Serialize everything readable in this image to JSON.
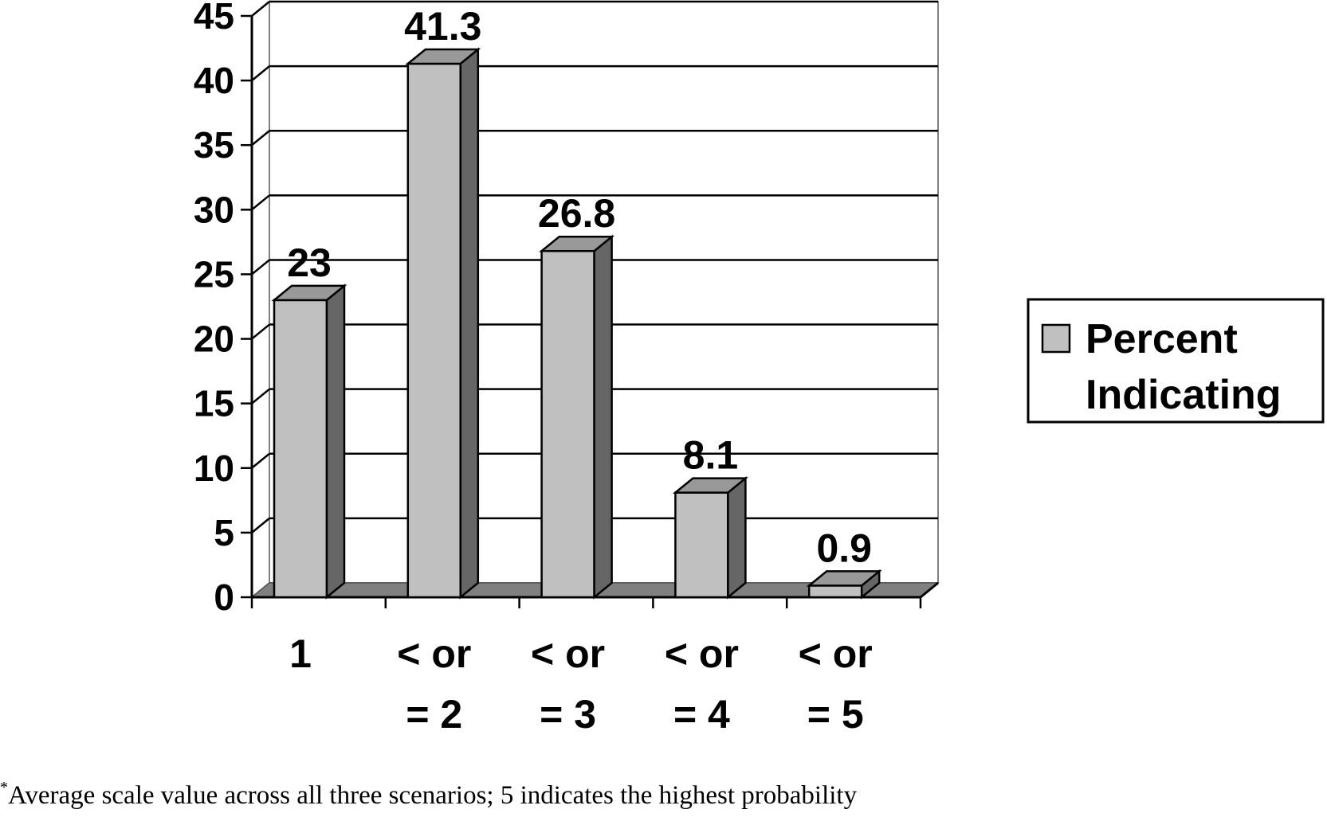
{
  "chart_data": {
    "type": "bar",
    "style": "3d-column",
    "categories": [
      [
        "1"
      ],
      [
        "< or",
        "= 2"
      ],
      [
        "< or",
        "= 3"
      ],
      [
        "< or",
        "= 4"
      ],
      [
        "< or",
        "= 5"
      ]
    ],
    "series": [
      {
        "name": "Percent Indicating",
        "values": [
          23,
          41.3,
          26.8,
          8.1,
          0.9
        ],
        "data_labels": [
          "23",
          "41.3",
          "26.8",
          "8.1",
          "0.9"
        ]
      }
    ],
    "yticks": [
      "0",
      "5",
      "10",
      "15",
      "20",
      "25",
      "30",
      "35",
      "40",
      "45"
    ],
    "ylim": [
      0,
      45
    ],
    "grid": true,
    "legend": {
      "position": "right",
      "lines": [
        "Percent",
        "Indicating"
      ]
    },
    "colors": {
      "bar_front": "#c0c0c0",
      "bar_side": "#666666",
      "bar_top": "#999999",
      "floor": "#808080",
      "wall": "#ffffff"
    }
  },
  "footnote": {
    "marker": "*",
    "text": "Average scale value across all three scenarios; 5 indicates the highest probability"
  }
}
